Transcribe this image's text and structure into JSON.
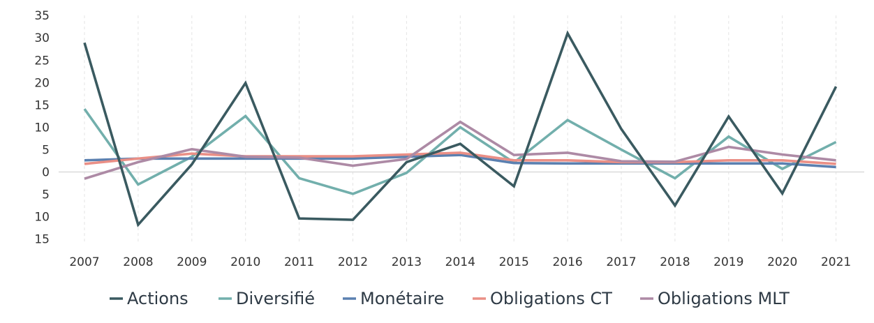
{
  "chart_data": {
    "type": "line",
    "title": "",
    "xlabel": "",
    "ylabel": "",
    "categories": [
      "2007",
      "2008",
      "2009",
      "2010",
      "2011",
      "2012",
      "2013",
      "2014",
      "2015",
      "2016",
      "2017",
      "2018",
      "2019",
      "2020",
      "2021"
    ],
    "ylim": [
      -15,
      35
    ],
    "y_ticks": [
      35,
      30,
      25,
      20,
      15,
      10,
      5,
      0,
      -5,
      -10,
      -15
    ],
    "y_tick_labels": [
      "35",
      "30",
      "25",
      "20",
      "15",
      "10",
      "5",
      "0",
      "5",
      "10",
      "15"
    ],
    "grid": "vertical dashed at categories",
    "legend_position": "bottom",
    "series": [
      {
        "name": "Actions",
        "color": "#3a5a60",
        "values": [
          28.9,
          -11.8,
          1.7,
          19.9,
          -10.4,
          -10.7,
          2.2,
          6.3,
          -3.2,
          31.0,
          9.6,
          -7.5,
          12.4,
          -4.8,
          19.1
        ]
      },
      {
        "name": "Diversifié",
        "color": "#72afac",
        "values": [
          14.1,
          -2.8,
          3.4,
          12.5,
          -1.4,
          -4.9,
          -0.2,
          10.0,
          2.1,
          11.6,
          5.0,
          -1.4,
          7.9,
          0.7,
          6.7
        ]
      },
      {
        "name": "Monétaire",
        "color": "#5b80b0",
        "values": [
          2.6,
          3.0,
          3.0,
          3.0,
          3.0,
          3.0,
          3.4,
          3.8,
          2.0,
          1.9,
          1.9,
          1.9,
          1.9,
          1.9,
          1.1
        ]
      },
      {
        "name": "Obligations CT",
        "color": "#ea8f86",
        "values": [
          1.8,
          3.0,
          4.1,
          3.5,
          3.5,
          3.5,
          3.9,
          4.3,
          2.6,
          2.6,
          2.2,
          2.2,
          2.6,
          2.6,
          1.8
        ]
      },
      {
        "name": "Obligations MLT",
        "color": "#ad8aa5",
        "values": [
          -1.5,
          2.2,
          5.1,
          3.4,
          3.2,
          1.4,
          2.9,
          11.2,
          3.8,
          4.3,
          2.4,
          2.3,
          5.6,
          3.9,
          2.6
        ]
      }
    ]
  }
}
